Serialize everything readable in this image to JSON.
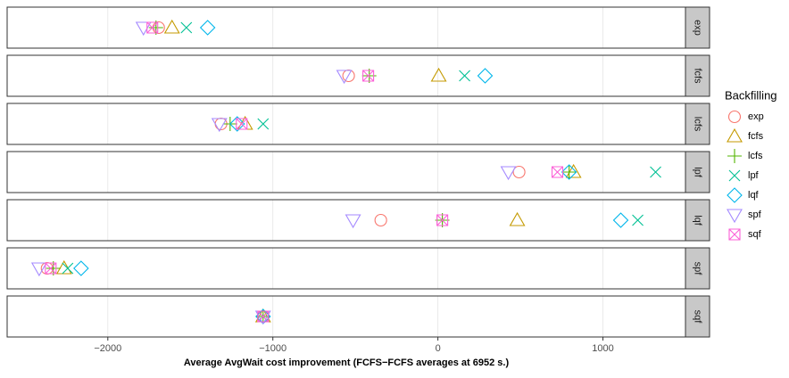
{
  "chart_data": {
    "type": "scatter",
    "xlabel": "Average AvgWait cost improvement (FCFS−FCFS averages at  6952  s.)",
    "legend_title": "Backfilling",
    "legend": "right",
    "grid": true,
    "facets": [
      "exp",
      "fcfs",
      "lcfs",
      "lpf",
      "lqf",
      "spf",
      "sqf"
    ],
    "xlim": [
      -2610,
      1500
    ],
    "xticks": [
      {
        "value": -2000,
        "label": "−2000"
      },
      {
        "value": -1000,
        "label": "−1000"
      },
      0,
      1000
    ],
    "series": [
      {
        "name": "exp",
        "color": "#F8766D",
        "shape": "circle",
        "values": [
          -1692,
          -541,
          -1314,
          492,
          -346,
          -2368,
          -1059
        ]
      },
      {
        "name": "fcfs",
        "color": "#C49A00",
        "shape": "triangle-up",
        "values": [
          -1611,
          5,
          -1168,
          822,
          481,
          -2265,
          -1059
        ]
      },
      {
        "name": "lcfs",
        "color": "#53B400",
        "shape": "plus",
        "values": [
          -1708,
          -416,
          -1259,
          795,
          27,
          -2330,
          -1059
        ]
      },
      {
        "name": "lpf",
        "color": "#00C094",
        "shape": "cross",
        "values": [
          -1524,
          162,
          -1059,
          1319,
          1211,
          -2243,
          -1059
        ]
      },
      {
        "name": "lqf",
        "color": "#00B6EB",
        "shape": "diamond",
        "values": [
          -1395,
          286,
          -1216,
          795,
          1108,
          -2162,
          -1059
        ]
      },
      {
        "name": "spf",
        "color": "#A58AFF",
        "shape": "triangle-down",
        "values": [
          -1784,
          -568,
          -1324,
          427,
          -514,
          -2416,
          -1059
        ]
      },
      {
        "name": "sqf",
        "color": "#FB61D7",
        "shape": "square-cross",
        "values": [
          -1730,
          -422,
          -1189,
          724,
          27,
          -2346,
          -1059
        ]
      }
    ]
  }
}
